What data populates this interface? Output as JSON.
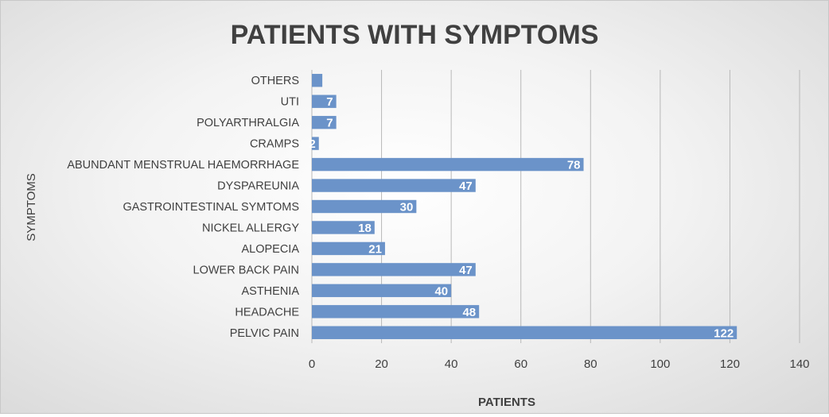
{
  "chart_data": {
    "type": "bar",
    "orientation": "horizontal",
    "title": "PATIENTS WITH SYMPTOMS",
    "xlabel": "PATIENTS",
    "ylabel": "SYMPTOMS",
    "categories": [
      "PELVIC PAIN",
      "HEADACHE",
      "ASTHENIA",
      "LOWER BACK PAIN",
      "ALOPECIA",
      "NICKEL ALLERGY",
      "GASTROINTESTINAL SYMTOMS",
      "DYSPAREUNIA",
      "ABUNDANT MENSTRUAL HAEMORRHAGE",
      "CRAMPS",
      "POLYARTHRALGIA",
      "UTI",
      "OTHERS"
    ],
    "values": [
      122,
      48,
      40,
      47,
      21,
      18,
      30,
      47,
      78,
      2,
      7,
      7,
      3
    ],
    "data_labels": [
      "122",
      "48",
      "40",
      "47",
      "21",
      "18",
      "30",
      "47",
      "78",
      "2",
      "7",
      "7",
      ""
    ],
    "xlim": [
      0,
      140
    ],
    "xticks": [
      0,
      20,
      40,
      60,
      80,
      100,
      120,
      140
    ],
    "grid": true,
    "legend": "none",
    "colors": {
      "bar": "#6b93c9",
      "label": "#ffffff",
      "grid": "#b8b8b8",
      "text": "#404040"
    }
  }
}
